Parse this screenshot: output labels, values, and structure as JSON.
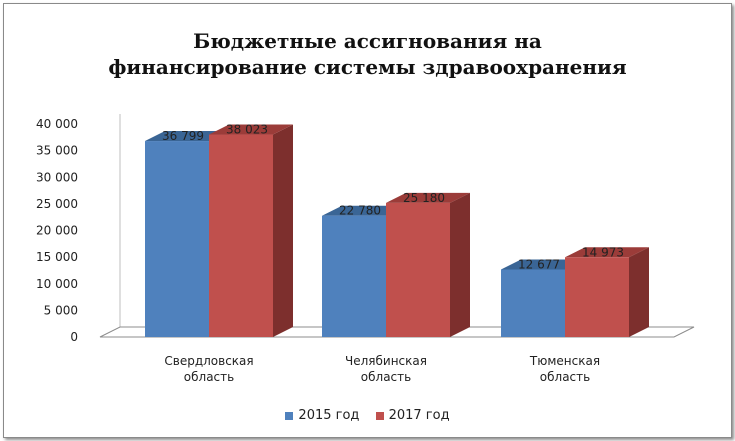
{
  "title_lines": [
    "Бюджетные ассигнования на",
    "финансирование системы здравоохранения"
  ],
  "chart_data": {
    "type": "bar",
    "title": "Бюджетные ассигнования на финансирование системы здравоохранения",
    "categories": [
      [
        "Свердловская",
        "область"
      ],
      [
        "Челябинская",
        "область"
      ],
      [
        "Тюменская",
        "область"
      ]
    ],
    "series": [
      {
        "name": "2015 год",
        "values": [
          36799,
          22780,
          12677
        ],
        "labels": [
          "36 799",
          "22 780",
          "12 677"
        ],
        "color": "#4f81bd",
        "side_color": "#2c4d75",
        "top_color": "#3a6595"
      },
      {
        "name": "2017 год",
        "values": [
          38023,
          25180,
          14973
        ],
        "labels": [
          "38 023",
          "25 180",
          "14 973"
        ],
        "color": "#c0504d",
        "side_color": "#7d2f2d",
        "top_color": "#9b3c39"
      }
    ],
    "ylim": [
      0,
      40000
    ],
    "yticks": [
      {
        "value": 40000,
        "label": "40 000"
      },
      {
        "value": 35000,
        "label": "35 000"
      },
      {
        "value": 30000,
        "label": "30 000"
      },
      {
        "value": 25000,
        "label": "25 000"
      },
      {
        "value": 20000,
        "label": "20 000"
      },
      {
        "value": 15000,
        "label": "15 000"
      },
      {
        "value": 10000,
        "label": "10 000"
      },
      {
        "value": 5000,
        "label": "5 000"
      },
      {
        "value": 0,
        "label": "0"
      }
    ],
    "grid": false,
    "legend": "bottom"
  }
}
